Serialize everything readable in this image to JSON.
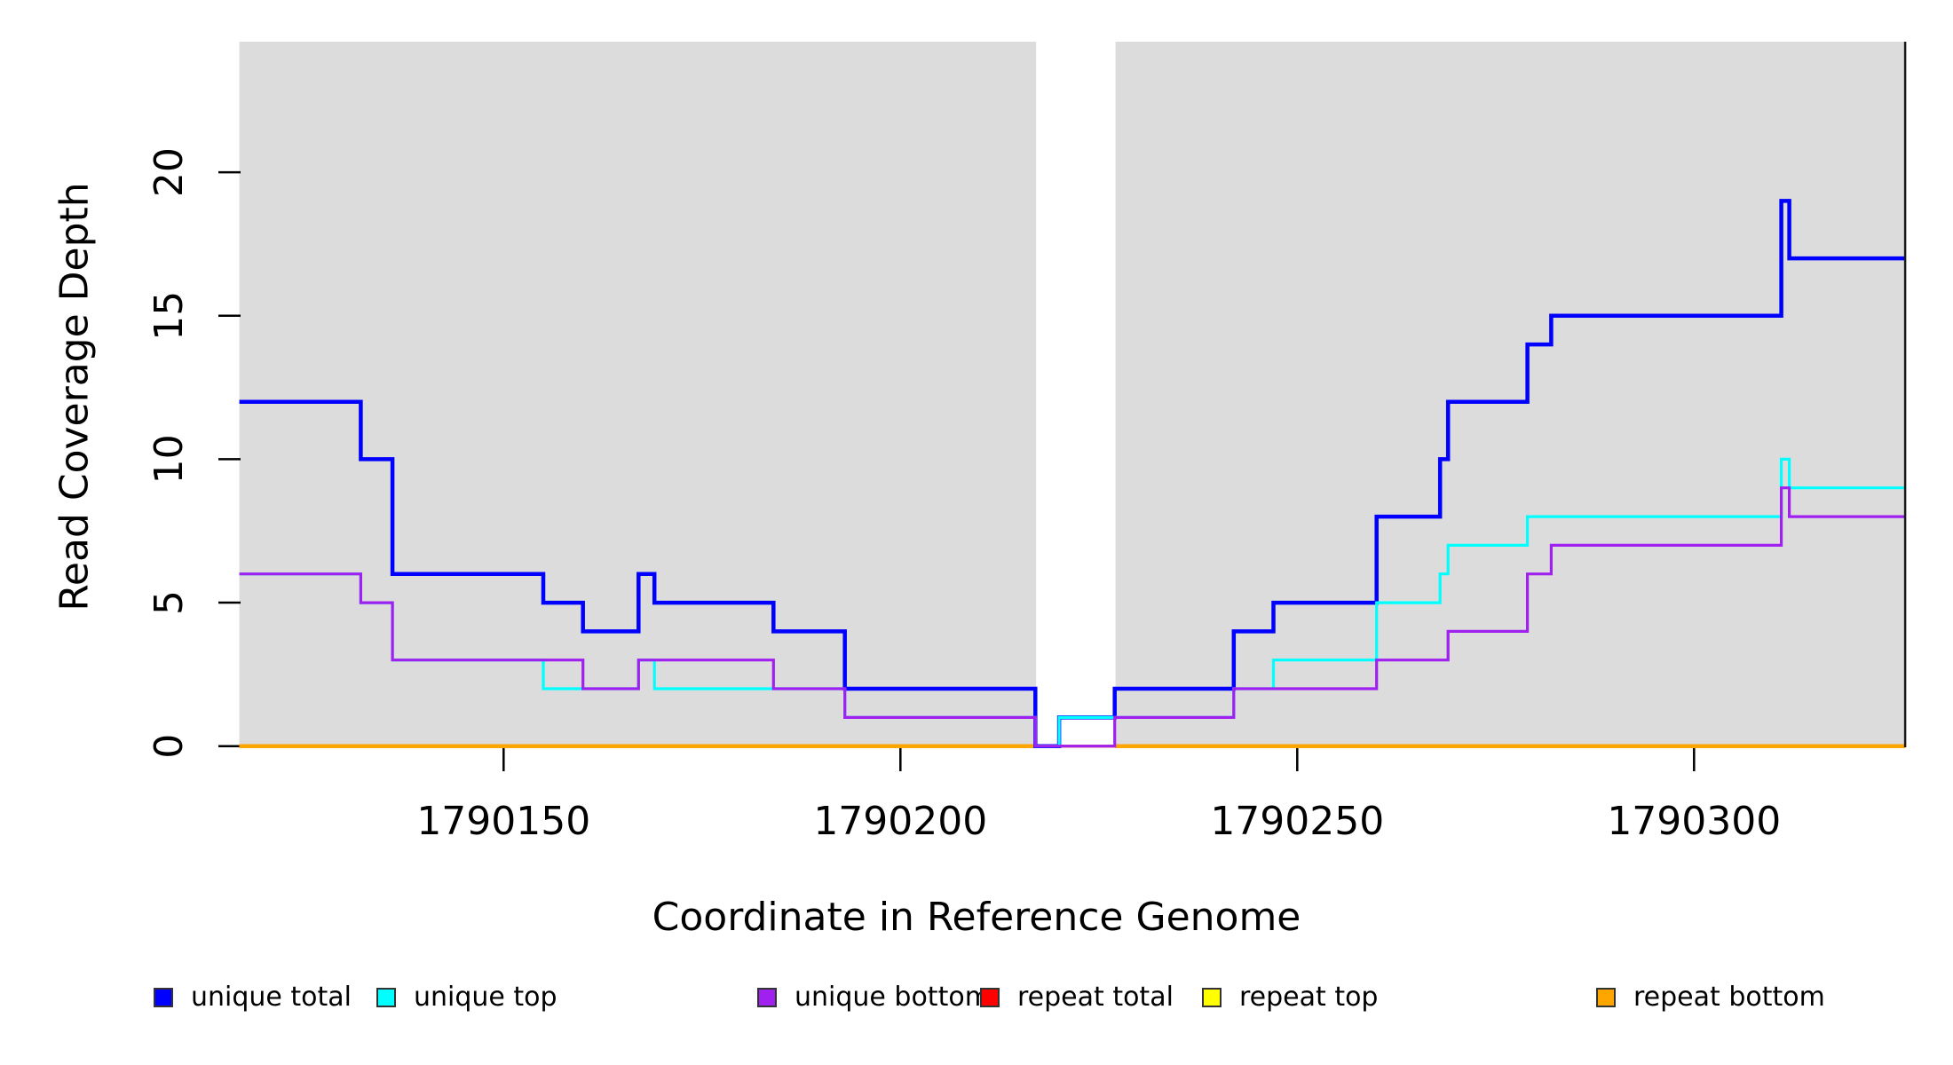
{
  "chart_data": {
    "type": "line",
    "subtype": "step",
    "title": "",
    "xlabel": "Coordinate in Reference Genome",
    "ylabel": "Read Coverage Depth",
    "x_ticks": [
      1790150,
      1790200,
      1790250,
      1790300
    ],
    "x_tick_labels": [
      "1790150",
      "1790200",
      "1790250",
      "1790300"
    ],
    "y_ticks": [
      0,
      5,
      10,
      15,
      20
    ],
    "y_tick_labels": [
      "0",
      "5",
      "10",
      "15",
      "20"
    ],
    "x_range": [
      1790116.7,
      1790326.6
    ],
    "y_range": [
      0,
      24.6
    ],
    "grid": false,
    "panel_background": "#DCDCDC",
    "data_gap_x": [
      1790217.1,
      1790227.1
    ],
    "legend_position": "bottom",
    "series": [
      {
        "name": "unique total",
        "color": "#0000FF",
        "width": 4.5,
        "steps": [
          [
            1790116.7,
            12
          ],
          [
            1790132,
            10
          ],
          [
            1790136,
            6
          ],
          [
            1790155,
            5
          ],
          [
            1790160,
            4
          ],
          [
            1790167,
            6
          ],
          [
            1790169,
            5
          ],
          [
            1790184,
            4
          ],
          [
            1790193,
            2
          ],
          [
            1790217,
            0
          ],
          [
            1790220,
            1
          ],
          [
            1790227,
            2
          ],
          [
            1790242,
            4
          ],
          [
            1790247,
            5
          ],
          [
            1790260,
            8
          ],
          [
            1790268,
            10
          ],
          [
            1790269,
            12
          ],
          [
            1790279,
            14
          ],
          [
            1790282,
            15
          ],
          [
            1790311,
            19
          ],
          [
            1790312,
            17
          ]
        ]
      },
      {
        "name": "unique top",
        "color": "#00FFFF",
        "width": 3.2,
        "steps": [
          [
            1790116.7,
            6
          ],
          [
            1790132,
            5
          ],
          [
            1790136,
            3
          ],
          [
            1790155,
            2
          ],
          [
            1790167,
            3
          ],
          [
            1790169,
            2
          ],
          [
            1790193,
            1
          ],
          [
            1790217,
            0
          ],
          [
            1790220,
            1
          ],
          [
            1790242,
            2
          ],
          [
            1790247,
            3
          ],
          [
            1790260,
            5
          ],
          [
            1790268,
            6
          ],
          [
            1790269,
            7
          ],
          [
            1790279,
            8
          ],
          [
            1790311,
            10
          ],
          [
            1790312,
            9
          ]
        ]
      },
      {
        "name": "unique bottom",
        "color": "#A020F0",
        "width": 3.2,
        "steps": [
          [
            1790116.7,
            6
          ],
          [
            1790132,
            5
          ],
          [
            1790136,
            3
          ],
          [
            1790160,
            2
          ],
          [
            1790167,
            3
          ],
          [
            1790184,
            2
          ],
          [
            1790193,
            1
          ],
          [
            1790217,
            0
          ],
          [
            1790227,
            1
          ],
          [
            1790242,
            2
          ],
          [
            1790260,
            3
          ],
          [
            1790269,
            4
          ],
          [
            1790279,
            6
          ],
          [
            1790282,
            7
          ],
          [
            1790311,
            9
          ],
          [
            1790312,
            8
          ]
        ]
      },
      {
        "name": "repeat total",
        "color": "#FF0000",
        "width": 3,
        "steps": [
          [
            1790116.7,
            0
          ]
        ]
      },
      {
        "name": "repeat top",
        "color": "#FFFF00",
        "width": 3,
        "steps": [
          [
            1790116.7,
            0
          ]
        ]
      },
      {
        "name": "repeat bottom",
        "color": "#FFA500",
        "width": 4.5,
        "steps": [
          [
            1790116.7,
            0
          ]
        ],
        "gaps": [
          [
            1790217.1,
            1790227.1
          ]
        ]
      }
    ],
    "draw_order": [
      4,
      3,
      5,
      0,
      1,
      2
    ]
  }
}
